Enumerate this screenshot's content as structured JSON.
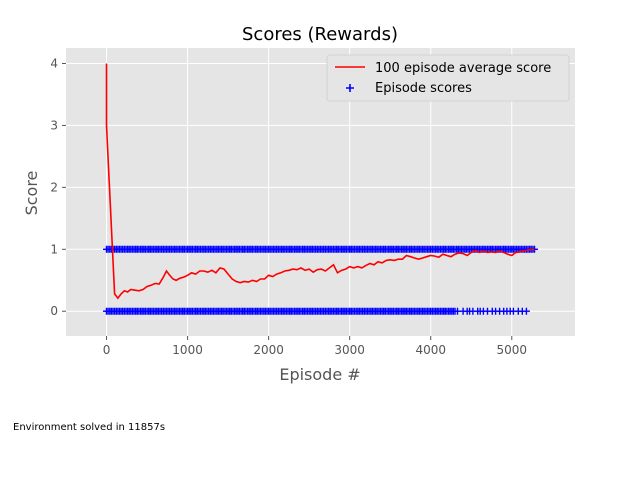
{
  "footer_note": "Environment solved in 11857s",
  "chart_data": {
    "type": "line",
    "title": "Scores (Rewards)",
    "xlabel": "Episode #",
    "ylabel": "Score",
    "xlim": [
      -500,
      5780
    ],
    "ylim": [
      -0.4,
      4.25
    ],
    "xticks": [
      0,
      1000,
      2000,
      3000,
      4000,
      5000
    ],
    "yticks": [
      0,
      1,
      2,
      3,
      4
    ],
    "grid": true,
    "background": "#e5e5e5",
    "legend": {
      "placement": "top-right",
      "entries": [
        "100 episode average score",
        "Episode scores"
      ]
    },
    "series": [
      {
        "name": "100 episode average score",
        "kind": "line",
        "color": "#ff0000",
        "points": [
          [
            0,
            4.0
          ],
          [
            0,
            3.0
          ],
          [
            100,
            0.28
          ],
          [
            140,
            0.21
          ],
          [
            180,
            0.28
          ],
          [
            220,
            0.33
          ],
          [
            260,
            0.31
          ],
          [
            300,
            0.35
          ],
          [
            350,
            0.34
          ],
          [
            400,
            0.33
          ],
          [
            450,
            0.35
          ],
          [
            500,
            0.4
          ],
          [
            550,
            0.42
          ],
          [
            600,
            0.45
          ],
          [
            650,
            0.44
          ],
          [
            700,
            0.55
          ],
          [
            740,
            0.65
          ],
          [
            780,
            0.58
          ],
          [
            820,
            0.52
          ],
          [
            860,
            0.5
          ],
          [
            900,
            0.53
          ],
          [
            950,
            0.55
          ],
          [
            1000,
            0.58
          ],
          [
            1050,
            0.62
          ],
          [
            1100,
            0.6
          ],
          [
            1150,
            0.65
          ],
          [
            1200,
            0.65
          ],
          [
            1250,
            0.63
          ],
          [
            1300,
            0.66
          ],
          [
            1350,
            0.62
          ],
          [
            1400,
            0.7
          ],
          [
            1450,
            0.68
          ],
          [
            1500,
            0.6
          ],
          [
            1550,
            0.52
          ],
          [
            1600,
            0.48
          ],
          [
            1650,
            0.46
          ],
          [
            1700,
            0.48
          ],
          [
            1750,
            0.47
          ],
          [
            1800,
            0.5
          ],
          [
            1850,
            0.48
          ],
          [
            1900,
            0.52
          ],
          [
            1950,
            0.52
          ],
          [
            2000,
            0.58
          ],
          [
            2050,
            0.56
          ],
          [
            2100,
            0.6
          ],
          [
            2150,
            0.62
          ],
          [
            2200,
            0.65
          ],
          [
            2250,
            0.66
          ],
          [
            2300,
            0.68
          ],
          [
            2350,
            0.67
          ],
          [
            2400,
            0.7
          ],
          [
            2450,
            0.66
          ],
          [
            2500,
            0.68
          ],
          [
            2550,
            0.63
          ],
          [
            2600,
            0.67
          ],
          [
            2650,
            0.68
          ],
          [
            2700,
            0.65
          ],
          [
            2750,
            0.7
          ],
          [
            2800,
            0.75
          ],
          [
            2850,
            0.62
          ],
          [
            2900,
            0.66
          ],
          [
            2950,
            0.68
          ],
          [
            3000,
            0.72
          ],
          [
            3050,
            0.7
          ],
          [
            3100,
            0.72
          ],
          [
            3150,
            0.7
          ],
          [
            3200,
            0.74
          ],
          [
            3250,
            0.77
          ],
          [
            3300,
            0.75
          ],
          [
            3350,
            0.8
          ],
          [
            3400,
            0.78
          ],
          [
            3450,
            0.82
          ],
          [
            3500,
            0.83
          ],
          [
            3550,
            0.82
          ],
          [
            3600,
            0.84
          ],
          [
            3650,
            0.84
          ],
          [
            3700,
            0.9
          ],
          [
            3750,
            0.88
          ],
          [
            3800,
            0.86
          ],
          [
            3850,
            0.84
          ],
          [
            3900,
            0.86
          ],
          [
            3950,
            0.88
          ],
          [
            4000,
            0.9
          ],
          [
            4050,
            0.89
          ],
          [
            4100,
            0.87
          ],
          [
            4150,
            0.92
          ],
          [
            4200,
            0.9
          ],
          [
            4250,
            0.88
          ],
          [
            4300,
            0.92
          ],
          [
            4350,
            0.94
          ],
          [
            4400,
            0.93
          ],
          [
            4450,
            0.9
          ],
          [
            4500,
            0.95
          ],
          [
            4550,
            0.98
          ],
          [
            4600,
            0.95
          ],
          [
            4650,
            0.97
          ],
          [
            4700,
            0.95
          ],
          [
            4750,
            0.96
          ],
          [
            4800,
            0.95
          ],
          [
            4850,
            0.97
          ],
          [
            4900,
            0.95
          ],
          [
            4950,
            0.92
          ],
          [
            5000,
            0.9
          ],
          [
            5050,
            0.95
          ],
          [
            5100,
            0.96
          ],
          [
            5150,
            0.97
          ],
          [
            5200,
            0.99
          ],
          [
            5250,
            1.0
          ],
          [
            5280,
            0.99
          ]
        ]
      },
      {
        "name": "Episode scores",
        "kind": "scatter",
        "marker": "+",
        "color": "#0000ff",
        "value_bands": [
          {
            "y": 1,
            "x_range": [
              0,
              5290
            ],
            "step": 20,
            "extra_x": []
          },
          {
            "y": 0,
            "x_range": [
              0,
              4300
            ],
            "step": 20,
            "extra_x": [
              4330,
              4400,
              4450,
              4480,
              4520,
              4580,
              4610,
              4650,
              4700,
              4760,
              4800,
              4850,
              4900,
              4940,
              4980,
              5020,
              5080,
              5130,
              5180
            ]
          }
        ]
      }
    ]
  }
}
